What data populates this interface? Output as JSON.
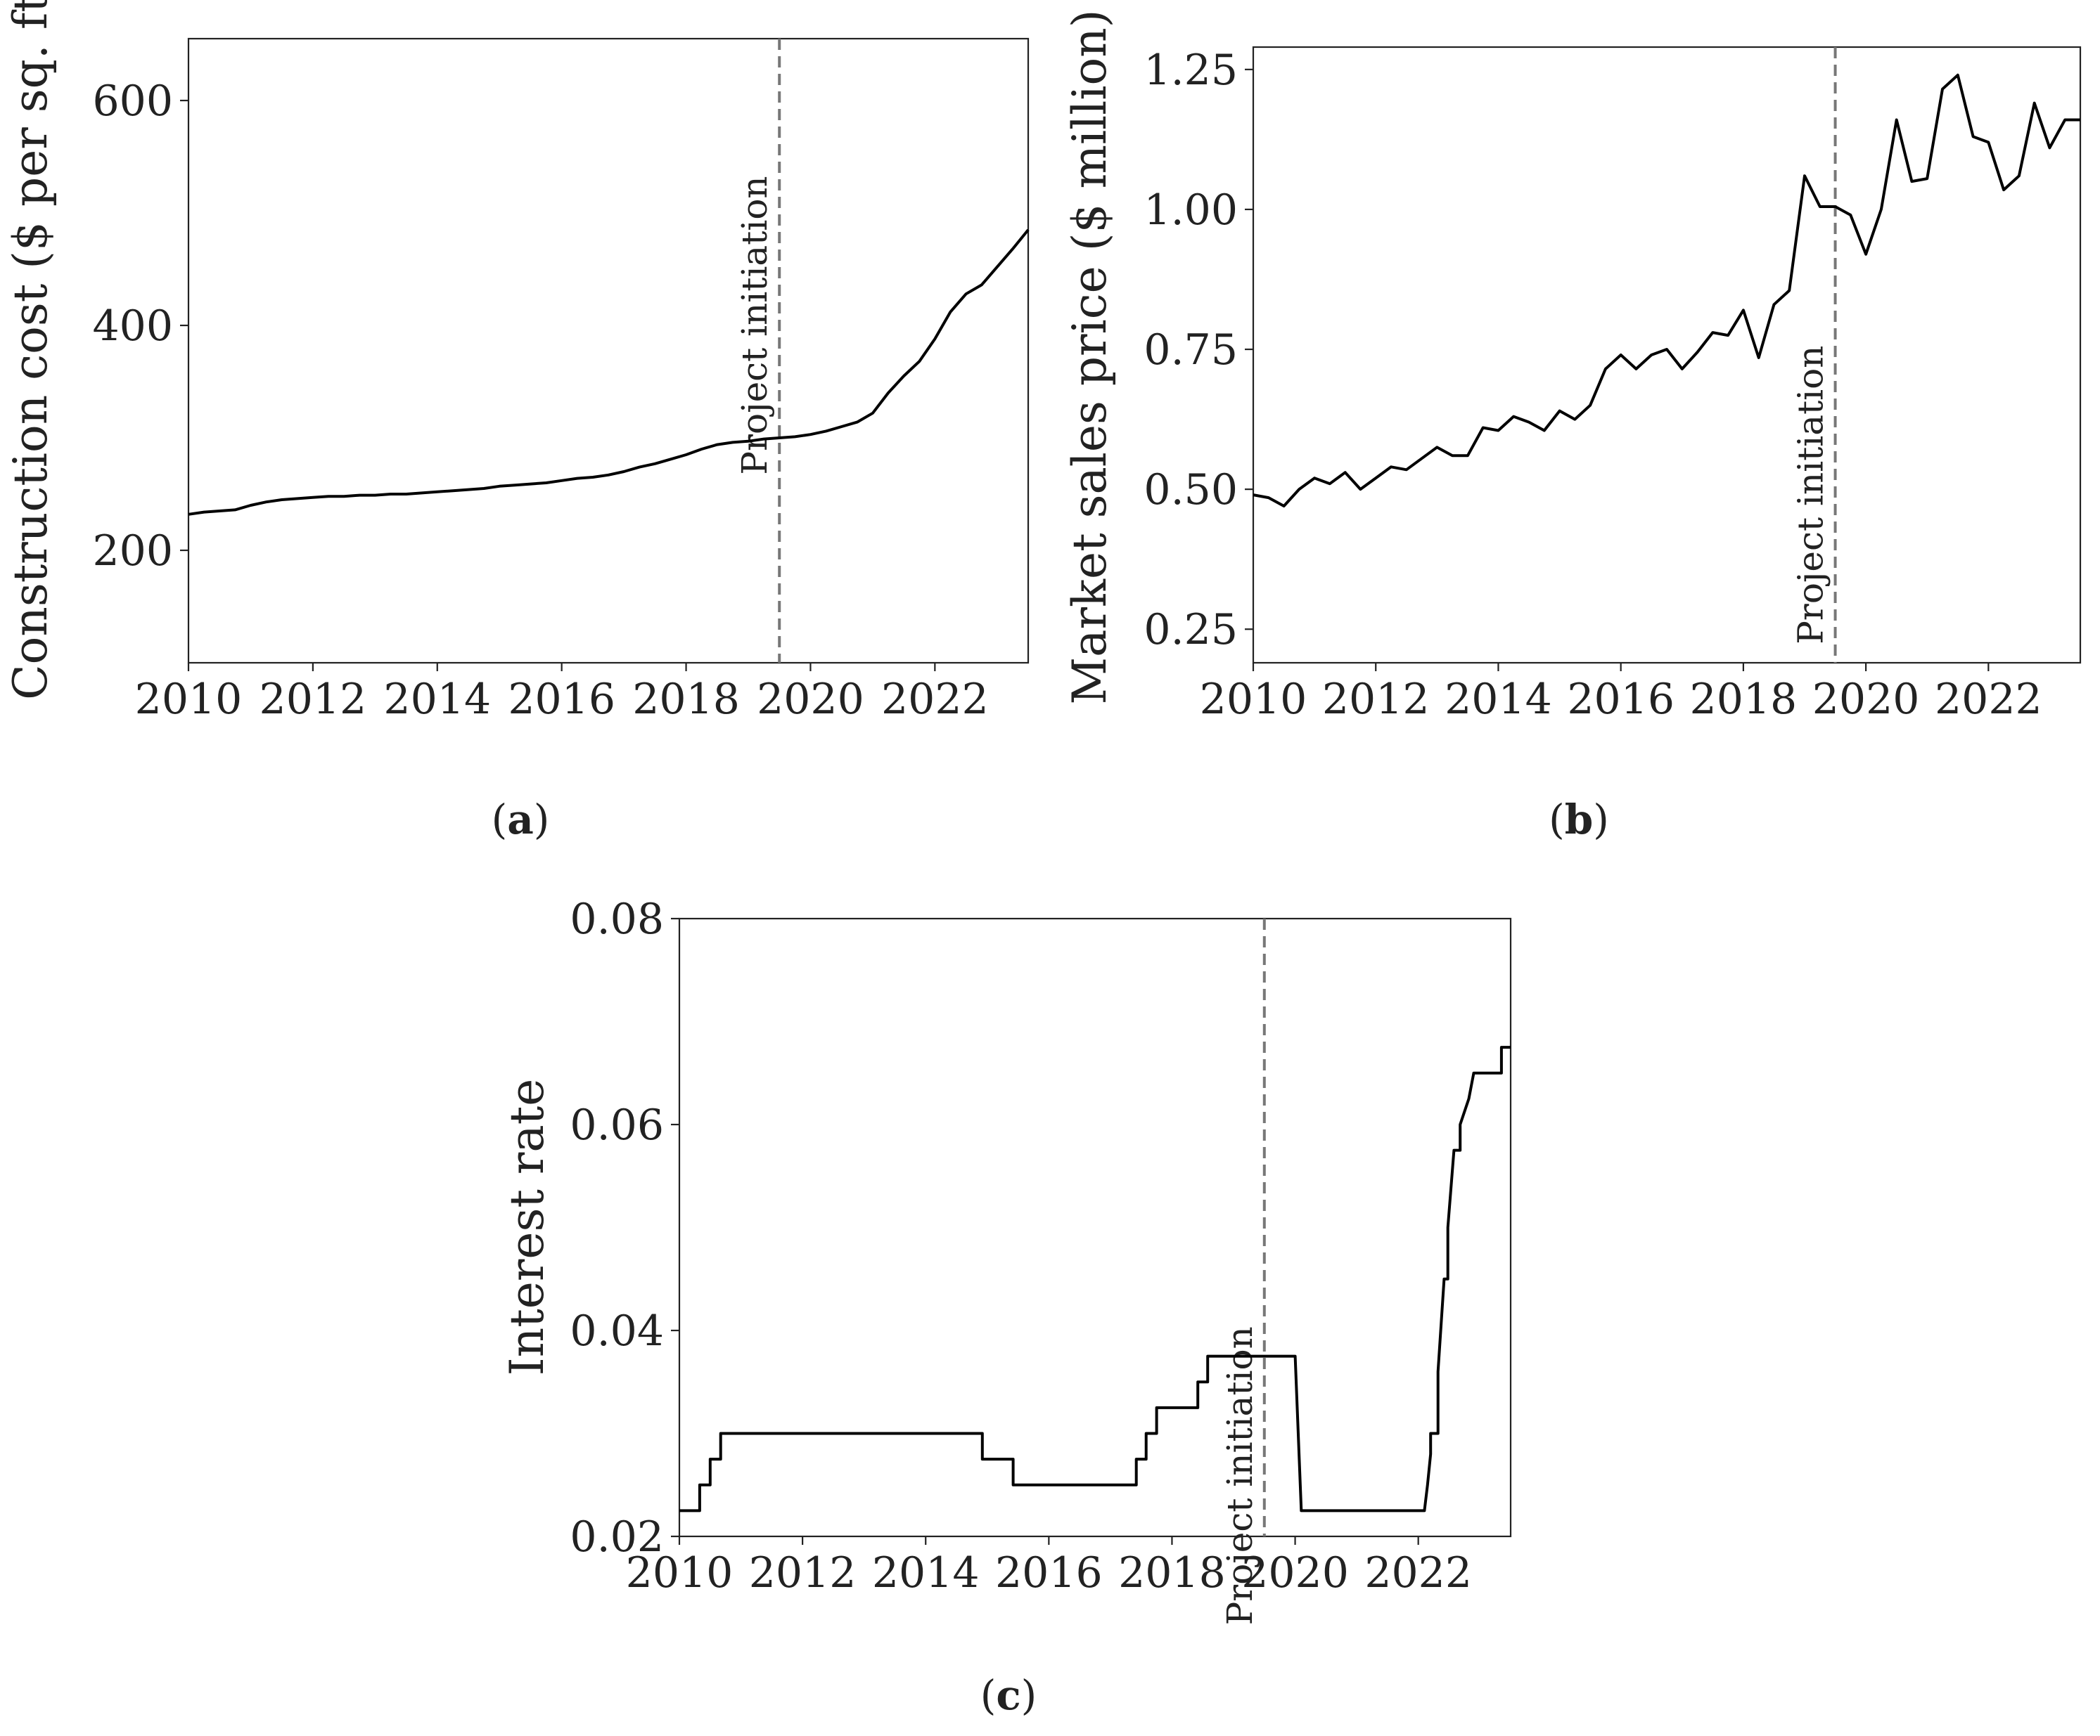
{
  "colors": {
    "line": "#000000",
    "marker": "#777777",
    "axis": "#222222",
    "background": "#ffffff"
  },
  "chart_data": [
    {
      "type": "line",
      "panel_label": "a",
      "ylabel": "Construction cost ($ per sq. ft.",
      "xlim": [
        2010,
        2023.5
      ],
      "ylim": [
        100,
        655
      ],
      "x_ticks": [
        2010,
        2012,
        2014,
        2016,
        2018,
        2020,
        2022
      ],
      "x_tick_labels": [
        "2010",
        "2012",
        "2014",
        "2016",
        "2018",
        "2020",
        "2022"
      ],
      "y_ticks": [
        200,
        400,
        600
      ],
      "y_tick_labels": [
        "200",
        "400",
        "600"
      ],
      "vline": {
        "x": 2019.5,
        "label": "Project initiation",
        "label_position": "upper-left",
        "style": "dashed"
      },
      "series": [
        {
          "x": [
            2010,
            2010.25,
            2010.5,
            2010.75,
            2011,
            2011.25,
            2011.5,
            2011.75,
            2012,
            2012.25,
            2012.5,
            2012.75,
            2013,
            2013.25,
            2013.5,
            2013.75,
            2014,
            2014.25,
            2014.5,
            2014.75,
            2015,
            2015.25,
            2015.5,
            2015.75,
            2016,
            2016.25,
            2016.5,
            2016.75,
            2017,
            2017.25,
            2017.5,
            2017.75,
            2018,
            2018.25,
            2018.5,
            2018.75,
            2019,
            2019.25,
            2019.5,
            2019.75,
            2020,
            2020.25,
            2020.5,
            2020.75,
            2021,
            2021.25,
            2021.5,
            2021.75,
            2022,
            2022.25,
            2022.5,
            2022.75,
            2023,
            2023.25,
            2023.5
          ],
          "y": [
            232,
            234,
            235,
            236,
            240,
            243,
            245,
            246,
            247,
            248,
            248,
            249,
            249,
            250,
            250,
            251,
            252,
            253,
            254,
            255,
            257,
            258,
            259,
            260,
            262,
            264,
            265,
            267,
            270,
            274,
            277,
            281,
            285,
            290,
            294,
            296,
            297,
            299,
            300,
            301,
            303,
            306,
            310,
            314,
            322,
            340,
            355,
            368,
            388,
            412,
            428,
            436,
            452,
            468,
            485
          ]
        }
      ]
    },
    {
      "type": "line",
      "panel_label": "b",
      "ylabel": "Market sales price ($ million)",
      "xlim": [
        2010,
        2023.5
      ],
      "ylim": [
        0.19,
        1.29
      ],
      "x_ticks": [
        2010,
        2012,
        2014,
        2016,
        2018,
        2020,
        2022
      ],
      "x_tick_labels": [
        "2010",
        "2012",
        "2014",
        "2016",
        "2018",
        "2020",
        "2022"
      ],
      "y_ticks": [
        0.25,
        0.5,
        0.75,
        1.0,
        1.25
      ],
      "y_tick_labels": [
        "0.25",
        "0.50",
        "0.75",
        "1.00",
        "1.25"
      ],
      "vline": {
        "x": 2019.5,
        "label": "Project initiation",
        "label_position": "lower-left",
        "style": "dashed"
      },
      "series": [
        {
          "x": [
            2010,
            2010.25,
            2010.5,
            2010.75,
            2011,
            2011.25,
            2011.5,
            2011.75,
            2012,
            2012.25,
            2012.5,
            2012.75,
            2013,
            2013.25,
            2013.5,
            2013.75,
            2014,
            2014.25,
            2014.5,
            2014.75,
            2015,
            2015.25,
            2015.5,
            2015.75,
            2016,
            2016.25,
            2016.5,
            2016.75,
            2017,
            2017.25,
            2017.5,
            2017.75,
            2018,
            2018.25,
            2018.5,
            2018.75,
            2019,
            2019.25,
            2019.5,
            2019.75,
            2020,
            2020.25,
            2020.5,
            2020.75,
            2021,
            2021.25,
            2021.5,
            2021.75,
            2022,
            2022.25,
            2022.5,
            2022.75,
            2023,
            2023.25,
            2023.5
          ],
          "y": [
            0.49,
            0.485,
            0.47,
            0.5,
            0.52,
            0.51,
            0.53,
            0.5,
            0.52,
            0.54,
            0.535,
            0.555,
            0.575,
            0.56,
            0.56,
            0.61,
            0.605,
            0.63,
            0.62,
            0.605,
            0.64,
            0.625,
            0.65,
            0.715,
            0.74,
            0.715,
            0.74,
            0.75,
            0.715,
            0.745,
            0.78,
            0.775,
            0.82,
            0.735,
            0.83,
            0.855,
            1.06,
            1.005,
            1.005,
            0.99,
            0.92,
            1.0,
            1.16,
            1.05,
            1.055,
            1.215,
            1.24,
            1.13,
            1.12,
            1.035,
            1.06,
            1.19,
            1.11,
            1.16,
            1.16
          ]
        }
      ]
    },
    {
      "type": "line",
      "panel_label": "c",
      "ylabel": "Interest rate",
      "xlim": [
        2010,
        2023.5
      ],
      "ylim": [
        0.02,
        0.08
      ],
      "x_ticks": [
        2010,
        2012,
        2014,
        2016,
        2018,
        2020,
        2022
      ],
      "x_tick_labels": [
        "2010",
        "2012",
        "2014",
        "2016",
        "2018",
        "2020",
        "2022"
      ],
      "y_ticks": [
        0.02,
        0.04,
        0.06,
        0.08
      ],
      "y_tick_labels": [
        "0.02",
        "0.04",
        "0.06",
        "0.08"
      ],
      "vline": {
        "x": 2019.5,
        "label": "Project initiation",
        "label_position": "middle-left",
        "style": "dashed"
      },
      "series": [
        {
          "x": [
            2010,
            2010.33,
            2010.33,
            2010.5,
            2010.5,
            2010.67,
            2010.67,
            2014.92,
            2014.92,
            2015.42,
            2015.42,
            2017.42,
            2017.42,
            2017.58,
            2017.58,
            2017.75,
            2017.75,
            2018.0,
            2018.0,
            2018.42,
            2018.42,
            2018.58,
            2018.58,
            2018.75,
            2018.75,
            2020.0,
            2020.1,
            2022.1,
            2022.15,
            2022.2,
            2022.2,
            2022.32,
            2022.32,
            2022.42,
            2022.48,
            2022.48,
            2022.58,
            2022.68,
            2022.68,
            2022.82,
            2022.9,
            2022.9,
            2023.0,
            2023.1,
            2023.1,
            2023.35,
            2023.35,
            2023.42,
            2023.5
          ],
          "y": [
            0.0225,
            0.0225,
            0.025,
            0.025,
            0.0275,
            0.0275,
            0.03,
            0.03,
            0.0275,
            0.0275,
            0.025,
            0.025,
            0.0275,
            0.0275,
            0.03,
            0.03,
            0.0325,
            0.0325,
            0.0325,
            0.0325,
            0.035,
            0.035,
            0.0375,
            0.0375,
            0.0375,
            0.0375,
            0.0225,
            0.0225,
            0.025,
            0.028,
            0.03,
            0.03,
            0.036,
            0.045,
            0.045,
            0.05,
            0.0575,
            0.0575,
            0.06,
            0.0625,
            0.065,
            0.065,
            0.065,
            0.065,
            0.065,
            0.065,
            0.0675,
            0.0675,
            0.0675
          ]
        }
      ]
    }
  ]
}
